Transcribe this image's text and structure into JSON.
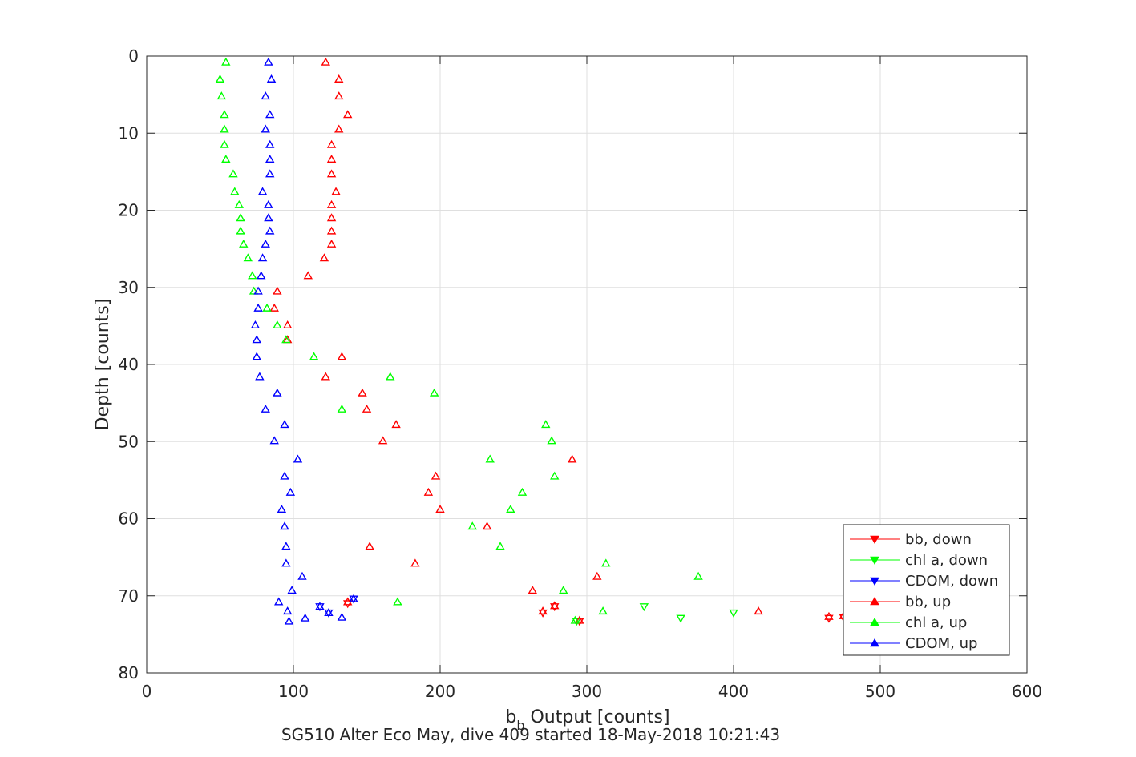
{
  "figure": {
    "caption": "SG510 Alter Eco May, dive 409 started 18-May-2018 10:21:43"
  },
  "colors": {
    "bb": "#ff0000",
    "chl": "#00ff00",
    "cdom": "#0000ff",
    "axis": "#262626",
    "grid": "#dfdfdf"
  },
  "chart_data": {
    "type": "scatter",
    "xlabel_main": "b",
    "xlabel_sub": "b",
    "xlabel_rest": " Output [counts]",
    "ylabel": "Depth [counts]",
    "xlim": [
      0,
      600
    ],
    "ylim": [
      0,
      80
    ],
    "y_reversed": true,
    "grid": true,
    "x_ticks": [
      "0",
      "100",
      "200",
      "300",
      "400",
      "500",
      "600"
    ],
    "y_ticks": [
      "0",
      "10",
      "20",
      "30",
      "40",
      "50",
      "60",
      "70",
      "80"
    ],
    "legend_position": "bottom-right",
    "series": [
      {
        "name": "bb, down",
        "key": "bb",
        "marker": "down",
        "points": [
          [
            137,
            71
          ],
          [
            270,
            72.2
          ],
          [
            278,
            71.4
          ],
          [
            295,
            73.3
          ],
          [
            465,
            72.9
          ],
          [
            475,
            72.8
          ]
        ]
      },
      {
        "name": "chl a, down",
        "key": "chl",
        "marker": "down",
        "points": [
          [
            293,
            73.3
          ],
          [
            339,
            71.4
          ],
          [
            364,
            72.9
          ],
          [
            400,
            72.2
          ]
        ]
      },
      {
        "name": "CDOM, down",
        "key": "cdom",
        "marker": "down",
        "points": [
          [
            118,
            71.4
          ],
          [
            124,
            72.2
          ],
          [
            141,
            70.4
          ]
        ]
      },
      {
        "name": "bb, up",
        "key": "bb",
        "marker": "up",
        "points": [
          [
            122,
            0.8
          ],
          [
            131,
            3
          ],
          [
            131,
            5.2
          ],
          [
            137,
            7.6
          ],
          [
            131,
            9.5
          ],
          [
            126,
            11.5
          ],
          [
            126,
            13.4
          ],
          [
            126,
            15.3
          ],
          [
            129,
            17.6
          ],
          [
            126,
            19.3
          ],
          [
            126,
            21
          ],
          [
            126,
            22.7
          ],
          [
            126,
            24.4
          ],
          [
            121,
            26.2
          ],
          [
            110,
            28.5
          ],
          [
            89,
            30.5
          ],
          [
            87,
            32.7
          ],
          [
            96,
            34.9
          ],
          [
            96,
            36.8
          ],
          [
            133,
            39
          ],
          [
            122,
            41.6
          ],
          [
            147,
            43.7
          ],
          [
            150,
            45.8
          ],
          [
            170,
            47.8
          ],
          [
            161,
            49.9
          ],
          [
            290,
            52.3
          ],
          [
            197,
            54.5
          ],
          [
            192,
            56.6
          ],
          [
            200,
            58.8
          ],
          [
            232,
            61
          ],
          [
            152,
            63.6
          ],
          [
            183,
            65.8
          ],
          [
            307,
            67.5
          ],
          [
            263,
            69.3
          ],
          [
            137,
            70.8
          ],
          [
            278,
            71.3
          ],
          [
            270,
            72
          ],
          [
            295,
            73.2
          ],
          [
            417,
            72
          ],
          [
            465,
            72.7
          ],
          [
            475,
            72.6
          ]
        ]
      },
      {
        "name": "chl a, up",
        "key": "chl",
        "marker": "up",
        "points": [
          [
            54,
            0.8
          ],
          [
            50,
            3
          ],
          [
            51,
            5.2
          ],
          [
            53,
            7.6
          ],
          [
            53,
            9.5
          ],
          [
            53,
            11.5
          ],
          [
            54,
            13.4
          ],
          [
            59,
            15.3
          ],
          [
            60,
            17.6
          ],
          [
            63,
            19.3
          ],
          [
            64,
            21
          ],
          [
            64,
            22.7
          ],
          [
            66,
            24.4
          ],
          [
            69,
            26.2
          ],
          [
            72,
            28.5
          ],
          [
            73,
            30.5
          ],
          [
            82,
            32.7
          ],
          [
            89,
            34.9
          ],
          [
            95,
            36.8
          ],
          [
            114,
            39
          ],
          [
            166,
            41.6
          ],
          [
            196,
            43.7
          ],
          [
            133,
            45.8
          ],
          [
            272,
            47.8
          ],
          [
            276,
            49.9
          ],
          [
            234,
            52.3
          ],
          [
            278,
            54.5
          ],
          [
            256,
            56.6
          ],
          [
            248,
            58.8
          ],
          [
            222,
            61
          ],
          [
            241,
            63.6
          ],
          [
            313,
            65.8
          ],
          [
            376,
            67.5
          ],
          [
            284,
            69.3
          ],
          [
            171,
            70.8
          ],
          [
            311,
            72
          ],
          [
            292,
            73.2
          ]
        ]
      },
      {
        "name": "CDOM, up",
        "key": "cdom",
        "marker": "up",
        "points": [
          [
            83,
            0.8
          ],
          [
            85,
            3
          ],
          [
            81,
            5.2
          ],
          [
            84,
            7.6
          ],
          [
            81,
            9.5
          ],
          [
            84,
            11.5
          ],
          [
            84,
            13.4
          ],
          [
            84,
            15.3
          ],
          [
            79,
            17.6
          ],
          [
            83,
            19.3
          ],
          [
            83,
            21
          ],
          [
            84,
            22.7
          ],
          [
            81,
            24.4
          ],
          [
            79,
            26.2
          ],
          [
            78,
            28.5
          ],
          [
            76,
            30.5
          ],
          [
            76,
            32.7
          ],
          [
            74,
            34.9
          ],
          [
            75,
            36.8
          ],
          [
            75,
            39
          ],
          [
            77,
            41.6
          ],
          [
            89,
            43.7
          ],
          [
            81,
            45.8
          ],
          [
            94,
            47.8
          ],
          [
            87,
            49.9
          ],
          [
            103,
            52.3
          ],
          [
            94,
            54.5
          ],
          [
            98,
            56.6
          ],
          [
            92,
            58.8
          ],
          [
            94,
            61
          ],
          [
            95,
            63.6
          ],
          [
            95,
            65.8
          ],
          [
            106,
            67.5
          ],
          [
            99,
            69.3
          ],
          [
            90,
            70.8
          ],
          [
            96,
            72
          ],
          [
            97,
            73.3
          ],
          [
            108,
            72.9
          ],
          [
            133,
            72.8
          ],
          [
            141,
            70.4
          ],
          [
            118,
            71.4
          ],
          [
            124,
            72.2
          ]
        ]
      }
    ]
  }
}
